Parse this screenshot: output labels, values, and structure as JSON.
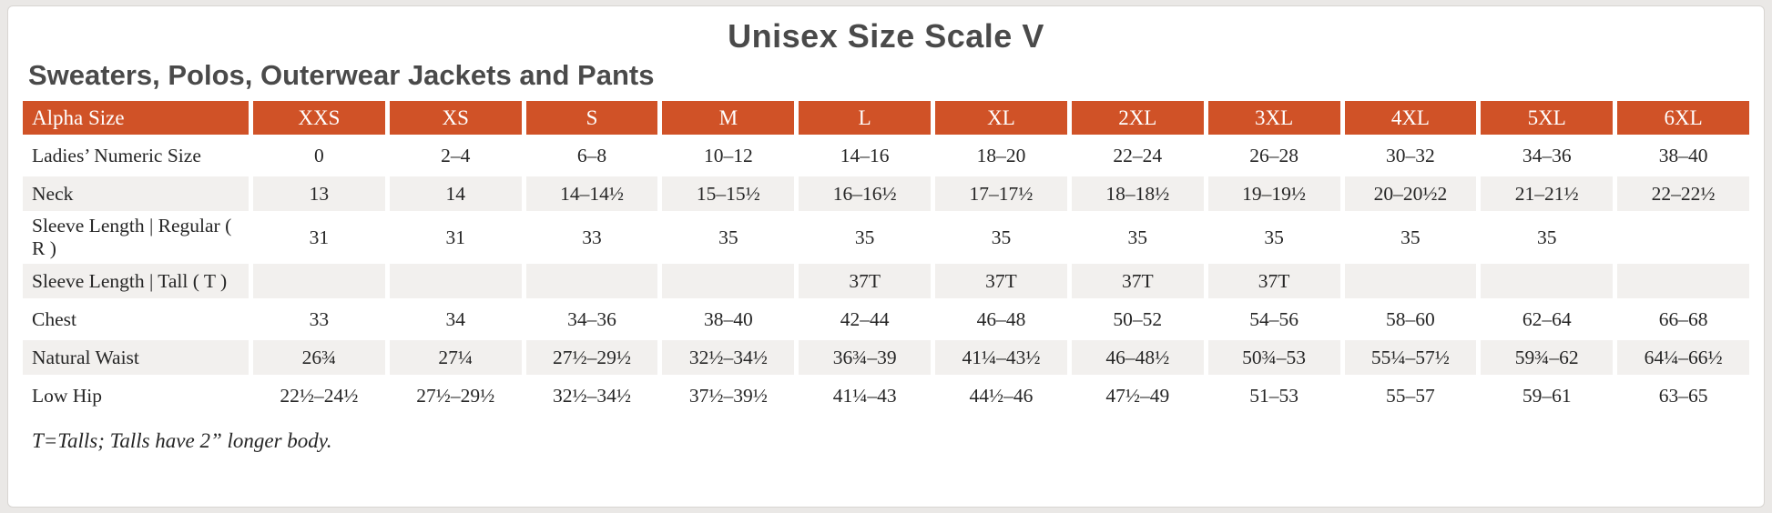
{
  "page": {
    "title": "Unisex Size Scale V",
    "subtitle": "Sweaters, Polos, Outerwear Jackets and Pants",
    "footnote": "T=Talls; Talls have 2” longer body."
  },
  "colors": {
    "header_bg": "#d05227",
    "header_text": "#ffffff",
    "alt_row_bg": "#f2f0ee",
    "body_text": "#262626",
    "title_text": "#4a4a4a",
    "card_bg": "#ffffff",
    "card_border": "#d8d5d2",
    "outer_bg": "#eae8e6"
  },
  "table": {
    "header": [
      "Alpha Size",
      "XXS",
      "XS",
      "S",
      "M",
      "L",
      "XL",
      "2XL",
      "3XL",
      "4XL",
      "5XL",
      "6XL"
    ],
    "rows": [
      {
        "label": "Ladies’ Numeric Size",
        "values": [
          "0",
          "2–4",
          "6–8",
          "10–12",
          "14–16",
          "18–20",
          "22–24",
          "26–28",
          "30–32",
          "34–36",
          "38–40"
        ]
      },
      {
        "label": "Neck",
        "values": [
          "13",
          "14",
          "14–14½",
          "15–15½",
          "16–16½",
          "17–17½",
          "18–18½",
          "19–19½",
          "20–20½2",
          "21–21½",
          "22–22½"
        ]
      },
      {
        "label": "Sleeve Length | Regular ( R )",
        "values": [
          "31",
          "31",
          "33",
          "35",
          "35",
          "35",
          "35",
          "35",
          "35",
          "35",
          ""
        ]
      },
      {
        "label": "Sleeve Length | Tall ( T )",
        "values": [
          "",
          "",
          "",
          "",
          "37T",
          "37T",
          "37T",
          "37T",
          "",
          "",
          ""
        ]
      },
      {
        "label": "Chest",
        "values": [
          "33",
          "34",
          "34–36",
          "38–40",
          "42–44",
          "46–48",
          "50–52",
          "54–56",
          "58–60",
          "62–64",
          "66–68"
        ]
      },
      {
        "label": "Natural Waist",
        "values": [
          "26¾",
          "27¼",
          "27½–29½",
          "32½–34½",
          "36¾–39",
          "41¼–43½",
          "46–48½",
          "50¾–53",
          "55¼–57½",
          "59¾–62",
          "64¼–66½"
        ]
      },
      {
        "label": "Low Hip",
        "values": [
          "22½–24½",
          "27½–29½",
          "32½–34½",
          "37½–39½",
          "41¼–43",
          "44½–46",
          "47½–49",
          "51–53",
          "55–57",
          "59–61",
          "63–65"
        ]
      }
    ]
  }
}
